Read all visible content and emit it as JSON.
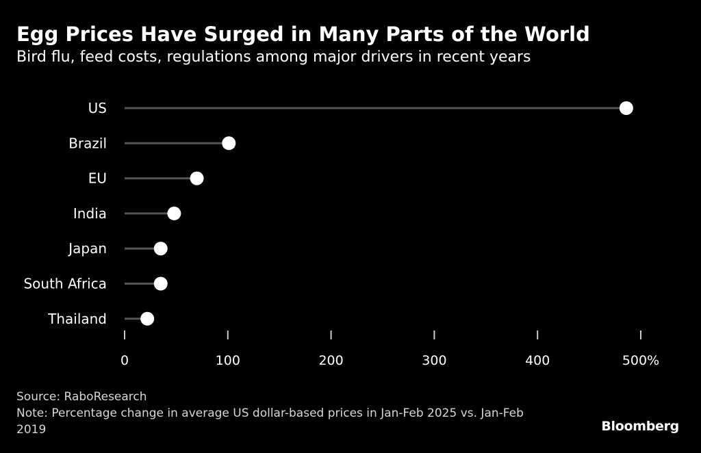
{
  "header": {
    "title": "Egg Prices Have Surged in Many Parts of the World",
    "subtitle": "Bird flu, feed costs, regulations among major drivers in recent years"
  },
  "footer": {
    "source": "Source: RaboResearch",
    "note": "Note: Percentage change in average US dollar-based prices in Jan-Feb 2025 vs. Jan-Feb 2019",
    "brand": "Bloomberg"
  },
  "colors": {
    "background": "#000000",
    "stem": "#555555",
    "dot": "#ffffff",
    "text": "#ffffff"
  },
  "chart_data": {
    "type": "lollipop",
    "title": "Egg Prices Have Surged in Many Parts of the World",
    "subtitle": "Bird flu, feed costs, regulations among major drivers in recent years",
    "categories": [
      "US",
      "Brazil",
      "EU",
      "India",
      "Japan",
      "South Africa",
      "Thailand"
    ],
    "values": [
      486,
      101,
      70,
      48,
      35,
      35,
      22
    ],
    "xlim": [
      0,
      500
    ],
    "x_ticks": [
      0,
      100,
      200,
      300,
      400,
      500
    ],
    "x_tick_labels": [
      "0",
      "100",
      "200",
      "300",
      "400",
      "500%"
    ],
    "xlabel": "",
    "ylabel": "",
    "grid": false,
    "legend": "none"
  }
}
